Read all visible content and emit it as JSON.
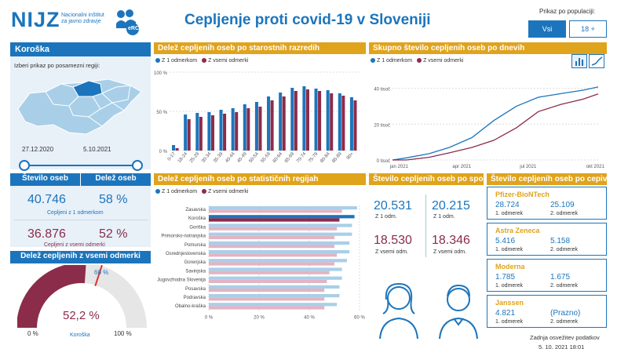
{
  "header": {
    "logo": "NIJZ",
    "logo_sub1": "Nacionalni inštitut",
    "logo_sub2": "za javno zdravje",
    "badge": "eRCO",
    "title": "Cepljenje proti covid-19 v Sloveniji",
    "population_label": "Prikaz po populaciji:",
    "btn_all": "Vsi",
    "btn_18": "18 +"
  },
  "region": {
    "name": "Koroška",
    "select_label": "Izberi prikaz po posamezni regiji:",
    "date_start": "27.12.2020",
    "date_end": "5.10.2021",
    "num_label": "Število oseb",
    "pct_label": "Delež oseb",
    "dose1_num": "40.746",
    "dose1_pct": "58 %",
    "dose1_label": "Cepljeni z 1 odmerkom",
    "dose_all_num": "36.876",
    "dose_all_pct": "52 %",
    "dose_all_label": "Cepljeni z vsemi odmerki"
  },
  "gauge": {
    "title": "Delež cepljenih z vsemi odmerki",
    "value": "52,2 %",
    "value_fraction": 0.522,
    "target": "60 %",
    "target_fraction": 0.6,
    "min": "0 %",
    "max": "100 %",
    "region": "Koroška"
  },
  "legend": {
    "dose1": "Z 1 odmerkom",
    "dose_all": "Z vsemi odmerki"
  },
  "colors": {
    "blue": "#1c75bc",
    "red": "#8b2c4a",
    "lightblue": "#a9cfe8",
    "pink": "#e3b4c3",
    "gold": "#e0a31c"
  },
  "age": {
    "title": "Delež cepljenih oseb po starostnih razredih",
    "ticks": [
      "100 %",
      "50 %",
      "0 %"
    ]
  },
  "daily": {
    "title": "Skupno število cepljenih oseb po dnevih",
    "yticks": [
      "40 tisoč",
      "20 tisoč",
      "0 tisoč"
    ],
    "xticks": [
      "jan 2021",
      "apr 2021",
      "jul 2021",
      "okt 2021"
    ]
  },
  "stat": {
    "title": "Delež cepljenih oseb po statističnih regijah",
    "xticks": [
      "0 %",
      "20 %",
      "40 %",
      "60 %"
    ]
  },
  "sex": {
    "title": "Število cepljenih oseb po spolu",
    "f1": "20.531",
    "f1_label": "Z 1 odm.",
    "m1": "20.215",
    "m1_label": "Z 1 odm.",
    "fall": "18.530",
    "fall_label": "Z vsemi odm.",
    "mall": "18.346",
    "mall_label": "Z vsemi odm."
  },
  "vaccines": {
    "title": "Število cepljenih oseb po cepivu",
    "items": [
      {
        "name": "Pfizer-BioNTech",
        "a": "28.724",
        "b": "25.109",
        "la": "1. odmerek",
        "lb": "2. odmerek"
      },
      {
        "name": "Astra Zeneca",
        "a": "5.416",
        "b": "5.158",
        "la": "1. odmerek",
        "lb": "2. odmerek"
      },
      {
        "name": "Moderna",
        "a": "1.785",
        "b": "1.675",
        "la": "1. odmerek",
        "lb": "2. odmerek"
      },
      {
        "name": "Janssen",
        "a": "4.821",
        "b": "(Prazno)",
        "la": "1. odmerek",
        "lb": "2. odmerek"
      }
    ]
  },
  "footer": {
    "label": "Zadnja osvežitev podatkov",
    "date": "5. 10. 2021 18:01"
  },
  "chart_data": [
    {
      "type": "bar",
      "title": "Delež cepljenih oseb po starostnih razredih",
      "categories": [
        "0-17",
        "18-24",
        "25-29",
        "30-34",
        "35-39",
        "40-44",
        "45-49",
        "50-54",
        "55-59",
        "60-64",
        "65-69",
        "70-74",
        "75-79",
        "80-84",
        "85-89",
        "90+"
      ],
      "series": [
        {
          "name": "Z 1 odmerkom",
          "values": [
            7,
            46,
            48,
            49,
            52,
            54,
            59,
            62,
            69,
            74,
            80,
            82,
            79,
            77,
            73,
            68
          ]
        },
        {
          "name": "Z vsemi odmerki",
          "values": [
            3,
            40,
            43,
            45,
            47,
            49,
            54,
            56,
            64,
            69,
            76,
            78,
            76,
            73,
            70,
            64
          ]
        }
      ],
      "ylim": [
        0,
        100
      ]
    },
    {
      "type": "line",
      "title": "Skupno število cepljenih oseb po dnevih",
      "x": [
        "2020-12-27",
        "2021-01-15",
        "2021-02-15",
        "2021-03-15",
        "2021-04-15",
        "2021-05-15",
        "2021-06-15",
        "2021-07-15",
        "2021-08-15",
        "2021-09-15",
        "2021-10-05"
      ],
      "series": [
        {
          "name": "Z 1 odmerkom",
          "values": [
            0,
            1200,
            3500,
            7000,
            12500,
            22000,
            30000,
            35000,
            37000,
            39000,
            40746
          ]
        },
        {
          "name": "Z vsemi odmerki",
          "values": [
            0,
            0,
            1500,
            4000,
            7000,
            11000,
            18000,
            27000,
            31000,
            34000,
            36876
          ]
        }
      ],
      "ylim": [
        0,
        42000
      ]
    },
    {
      "type": "bar",
      "title": "Delež cepljenih oseb po statističnih regijah",
      "categories": [
        "Zasavska",
        "Koroška",
        "Goriška",
        "Primorsko-notranjska",
        "Pomurska",
        "Osrednjeslovenska",
        "Gorenjska",
        "Savinjska",
        "Jugovzhodna Slovenija",
        "Posavska",
        "Podravska",
        "Obalno-kraška"
      ],
      "series": [
        {
          "name": "Z 1 odmerkom",
          "values": [
            59,
            58,
            57,
            57,
            56,
            56,
            55,
            53,
            53,
            52,
            52,
            51
          ]
        },
        {
          "name": "Z vsemi odmerki",
          "values": [
            53,
            52,
            51,
            50,
            50,
            51,
            50,
            48,
            47,
            46,
            46,
            46
          ]
        }
      ],
      "xlim": [
        0,
        60
      ]
    }
  ]
}
